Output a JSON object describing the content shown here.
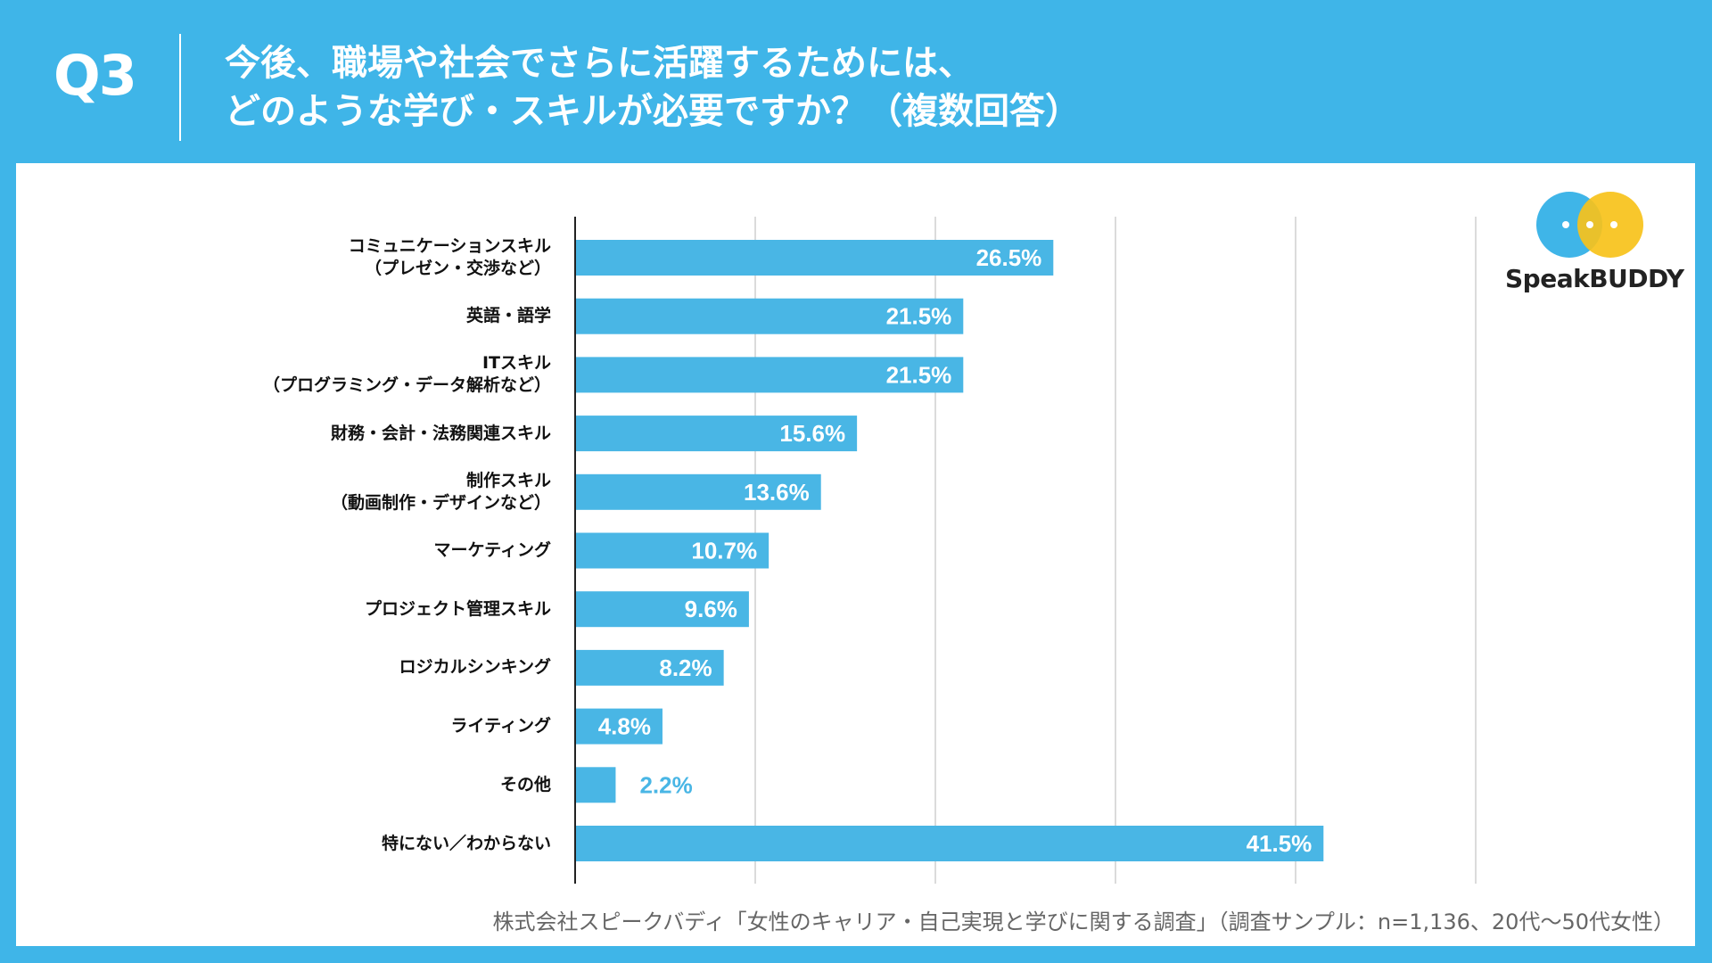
{
  "header": {
    "q_label": "Q3",
    "title_line1": "今後、職場や社会でさらに活躍するためには、",
    "title_line2": "どのような学び・スキルが必要ですか？（複数回答）"
  },
  "logo": {
    "text": "SpeakBUDDY"
  },
  "source": "株式会社スピークバディ「女性のキャリア・自己実現と学びに関する調査」（調査サンプル：n=1,136、20代〜50代女性）",
  "colors": {
    "background": "#3fb5e8",
    "bar": "#49b6e5",
    "bar_label": "#ffffff",
    "outside_label": "#49b6e5",
    "logo_blue": "#3fb5e8",
    "logo_yellow": "#f7c21a",
    "logo_green": "#1a9e8a"
  },
  "chart_data": {
    "type": "bar",
    "orientation": "horizontal",
    "unit": "%",
    "xlim": [
      0,
      50
    ],
    "gridlines": [
      0,
      10,
      20,
      30,
      40,
      50
    ],
    "categories": [
      [
        "コミュニケーションスキル",
        "（プレゼン・交渉など）"
      ],
      [
        "英語・語学"
      ],
      [
        "ITスキル",
        "（プログラミング・データ解析など）"
      ],
      [
        "財務・会計・法務関連スキル"
      ],
      [
        "制作スキル",
        "（動画制作・デザインなど）"
      ],
      [
        "マーケティング"
      ],
      [
        "プロジェクト管理スキル"
      ],
      [
        "ロジカルシンキング"
      ],
      [
        "ライティング"
      ],
      [
        "その他"
      ],
      [
        "特にない／わからない"
      ]
    ],
    "values": [
      26.5,
      21.5,
      21.5,
      15.6,
      13.6,
      10.7,
      9.6,
      8.2,
      4.8,
      2.2,
      41.5
    ],
    "value_labels": [
      "26.5%",
      "21.5%",
      "21.5%",
      "15.6%",
      "13.6%",
      "10.7%",
      "9.6%",
      "8.2%",
      "4.8%",
      "2.2%",
      "41.5%"
    ]
  }
}
